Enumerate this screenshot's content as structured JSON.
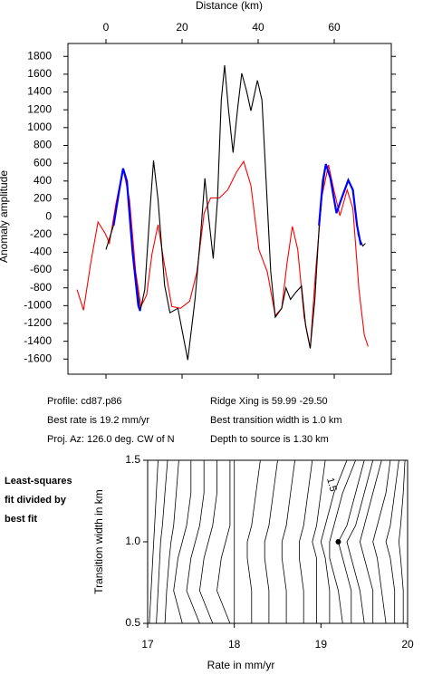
{
  "chart_data": [
    {
      "type": "line",
      "xlabel": "Distance (km)",
      "ylabel": "Anomaly amplitude",
      "xlim": [
        -10,
        75
      ],
      "ylim": [
        -1770,
        1945
      ],
      "xticks": [
        0,
        20,
        40,
        60
      ],
      "yticks": [
        -1600,
        -1400,
        -1200,
        -1000,
        -800,
        -600,
        -400,
        -200,
        0,
        200,
        400,
        600,
        800,
        1000,
        1200,
        1400,
        1600,
        1800
      ],
      "series": [
        {
          "color": "#ff0000",
          "x": [
            -7.6,
            -5.9,
            -4,
            -2.1,
            -0.2,
            0.9,
            2.6,
            4.5,
            6.2,
            7.8,
            9.2,
            10.7,
            12.1,
            13.7,
            15.1,
            17.3,
            19.6,
            22,
            23.9,
            25.8,
            27.5,
            29.8,
            32,
            34.3,
            36.2,
            38.1,
            40.2,
            42.4,
            44.5,
            46.2,
            47.6,
            49,
            50.4,
            52.1,
            53.7,
            55.1,
            56.8,
            58.5,
            59.9,
            61.5,
            63.4,
            64.9,
            66.5,
            67.9,
            68.9
          ],
          "values": [
            -820,
            -1050,
            -520,
            -60,
            -190,
            -300,
            140,
            540,
            190,
            -620,
            -1010,
            -880,
            -420,
            -90,
            -470,
            -1010,
            -1030,
            -950,
            -620,
            40,
            210,
            210,
            300,
            500,
            620,
            350,
            -370,
            -620,
            -1110,
            -1030,
            -520,
            -110,
            -370,
            -1130,
            -1480,
            -620,
            240,
            580,
            300,
            10,
            300,
            90,
            -820,
            -1330,
            -1460
          ]
        },
        {
          "color": "#000000",
          "x": [
            0,
            1.9,
            4.5,
            5.4,
            7.3,
            9,
            10.2,
            11.6,
            12.5,
            13.7,
            15.4,
            16.8,
            18.9,
            21.5,
            23.4,
            24.9,
            26,
            27,
            28.2,
            29.3,
            30.3,
            31.2,
            32.2,
            33.4,
            34.6,
            35.7,
            36.9,
            38.1,
            39.8,
            41,
            42.1,
            43.3,
            44.5,
            46.2,
            47.3,
            48.5,
            49.9,
            51.4,
            52.5,
            53.7,
            54.9,
            56.3,
            57.8,
            59.2,
            60.6,
            61.8,
            63.7,
            64.9,
            66.3,
            67.5,
            68.2
          ],
          "values": [
            -370,
            -110,
            540,
            400,
            -520,
            -1060,
            -820,
            90,
            630,
            190,
            -770,
            -1080,
            -1030,
            -1610,
            -930,
            -190,
            430,
            -10,
            -470,
            190,
            1310,
            1700,
            1210,
            720,
            1210,
            1610,
            1420,
            1190,
            1530,
            1310,
            400,
            -620,
            -1130,
            -1030,
            -800,
            -930,
            -850,
            -780,
            -1230,
            -1480,
            -930,
            90,
            590,
            400,
            40,
            190,
            410,
            300,
            -210,
            -330,
            -300
          ]
        },
        {
          "color": "#0000ff",
          "x": [
            2,
            3.5,
            4.5,
            5.5,
            7,
            8.5,
            9,
            null,
            56,
            57,
            57.8,
            59,
            60.6,
            61.8,
            63.7,
            64.9,
            66,
            67
          ],
          "values": [
            -100,
            300,
            540,
            400,
            -400,
            -1000,
            -1060,
            null,
            -100,
            400,
            590,
            430,
            40,
            190,
            410,
            300,
            -100,
            -320
          ]
        }
      ],
      "annotations": [
        "Profile: cd87.p86",
        "Best rate is 19.2 mm/yr",
        "Proj. Az: 126.0 deg. CW of N",
        "Ridge Xing is 59.99 -29.50",
        "Best transition width is 1.0 km",
        "Depth to source is   1.30 km"
      ]
    },
    {
      "type": "contour",
      "xlabel": "Rate in mm/yr",
      "ylabel": "Transition width in km",
      "side_text": [
        "Least-squares",
        "fit divided by",
        "best fit"
      ],
      "xlim": [
        17,
        20
      ],
      "ylim": [
        0.5,
        1.5
      ],
      "xticks": [
        17,
        18,
        19,
        20
      ],
      "yticks": [
        0.5,
        {
          "value": 1,
          "label": "1.0"
        },
        1.5
      ],
      "contour_y": [
        0.5,
        0.7,
        0.9,
        1.0,
        1.1,
        1.3,
        1.5
      ],
      "contours": [
        [
          17.02,
          17.04,
          17.06,
          17.07,
          17.08,
          17.1,
          17.12
        ],
        [
          17.1,
          17.12,
          17.14,
          17.15,
          17.17,
          17.2,
          17.23
        ],
        [
          17.2,
          17.22,
          17.25,
          17.27,
          17.3,
          17.33,
          17.36
        ],
        [
          17.4,
          17.3,
          17.35,
          17.4,
          17.45,
          17.5,
          17.5
        ],
        [
          17.6,
          17.45,
          17.5,
          17.55,
          17.6,
          17.65,
          17.65
        ],
        [
          17.75,
          17.6,
          17.65,
          17.7,
          17.75,
          17.8,
          17.8
        ],
        [
          17.95,
          17.8,
          17.85,
          17.9,
          17.95,
          17.95,
          17.95
        ],
        [
          18.0,
          18.0,
          18.0,
          18.0,
          18.0,
          18.0,
          18.0
        ],
        [
          18.2,
          18.2,
          18.15,
          18.15,
          18.2,
          18.25,
          18.3
        ],
        [
          18.4,
          18.4,
          18.35,
          18.35,
          18.4,
          18.45,
          18.5
        ],
        [
          18.6,
          18.6,
          18.55,
          18.55,
          18.6,
          18.65,
          18.7
        ],
        [
          18.8,
          18.8,
          18.75,
          18.75,
          18.8,
          18.85,
          18.9
        ],
        [
          18.95,
          18.95,
          18.95,
          18.9,
          18.95,
          19.0,
          19.05
        ],
        [
          19.1,
          19.1,
          19.05,
          19.0,
          19.05,
          19.15,
          19.3
        ],
        [
          19.25,
          19.2,
          19.1,
          19.1,
          19.15,
          19.25,
          19.4
        ],
        [
          19.35,
          19.35,
          19.25,
          19.2,
          19.3,
          19.4,
          19.5
        ],
        [
          19.5,
          19.45,
          19.35,
          19.3,
          19.4,
          19.5,
          19.6
        ],
        [
          19.6,
          19.6,
          19.5,
          19.45,
          19.5,
          19.6,
          19.7
        ],
        [
          19.75,
          19.7,
          19.65,
          19.6,
          19.65,
          19.75,
          19.8
        ],
        [
          19.85,
          19.85,
          19.8,
          19.75,
          19.8,
          19.85,
          19.9
        ],
        [
          19.95,
          19.95,
          19.92,
          19.9,
          19.92,
          19.95,
          19.97
        ]
      ],
      "contour_labels": [
        {
          "value": 1.5,
          "x": 19.12,
          "y": 1.35
        }
      ],
      "best_fit": {
        "x": 19.2,
        "y": 1
      }
    }
  ]
}
